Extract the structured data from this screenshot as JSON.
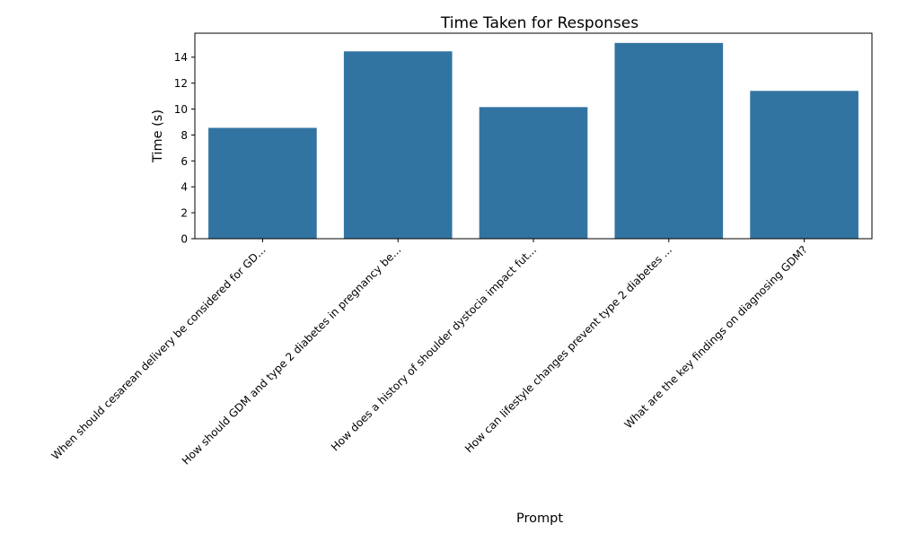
{
  "chart_data": {
    "type": "bar",
    "title": "Time Taken for Responses",
    "xlabel": "Prompt",
    "ylabel": "Time (s)",
    "categories": [
      "When should cesarean delivery be considered for GD...",
      "How should GDM and type 2 diabetes in pregnancy be...",
      "How does a history of shoulder dystocia impact fut...",
      "How can lifestyle changes prevent type 2 diabetes ...",
      "What are the key findings on diagnosing GDM?"
    ],
    "values": [
      8.55,
      14.45,
      10.15,
      15.1,
      11.4
    ],
    "ylim": [
      0,
      15.85
    ],
    "yticks": [
      0,
      2,
      4,
      6,
      8,
      10,
      12,
      14
    ],
    "bar_color": "#3274a1",
    "grid": false
  }
}
